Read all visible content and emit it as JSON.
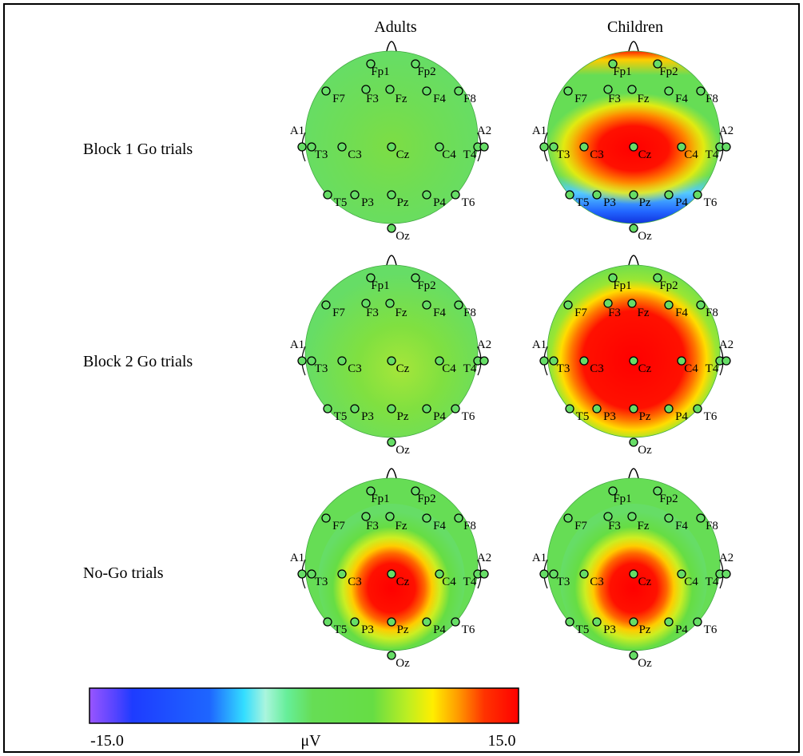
{
  "columns": [
    "Adults",
    "Children"
  ],
  "rows": [
    "Block 1 Go trials",
    "Block 2 Go trials",
    "No-Go trials"
  ],
  "electrodes": [
    "Fp1",
    "Fp2",
    "F7",
    "F3",
    "Fz",
    "F4",
    "F8",
    "A1",
    "T3",
    "C3",
    "Cz",
    "C4",
    "T4",
    "A2",
    "T5",
    "P3",
    "Pz",
    "P4",
    "T6",
    "Oz"
  ],
  "colorbar": {
    "min_label": "-15.0",
    "max_label": "15.0",
    "unit_label": "μV",
    "min": -15.0,
    "max": 15.0
  },
  "colors": {
    "background": "#ffffff",
    "electrode_fill": "#66dd66",
    "electrode_stroke": "#000000"
  },
  "maps": [
    {
      "row": 0,
      "col": 0,
      "pattern": "flat_green"
    },
    {
      "row": 0,
      "col": 1,
      "pattern": "central_positive_occipital_negative"
    },
    {
      "row": 1,
      "col": 0,
      "pattern": "flat_green"
    },
    {
      "row": 1,
      "col": 1,
      "pattern": "broad_central_positive"
    },
    {
      "row": 2,
      "col": 0,
      "pattern": "central_positive"
    },
    {
      "row": 2,
      "col": 1,
      "pattern": "central_positive"
    }
  ]
}
